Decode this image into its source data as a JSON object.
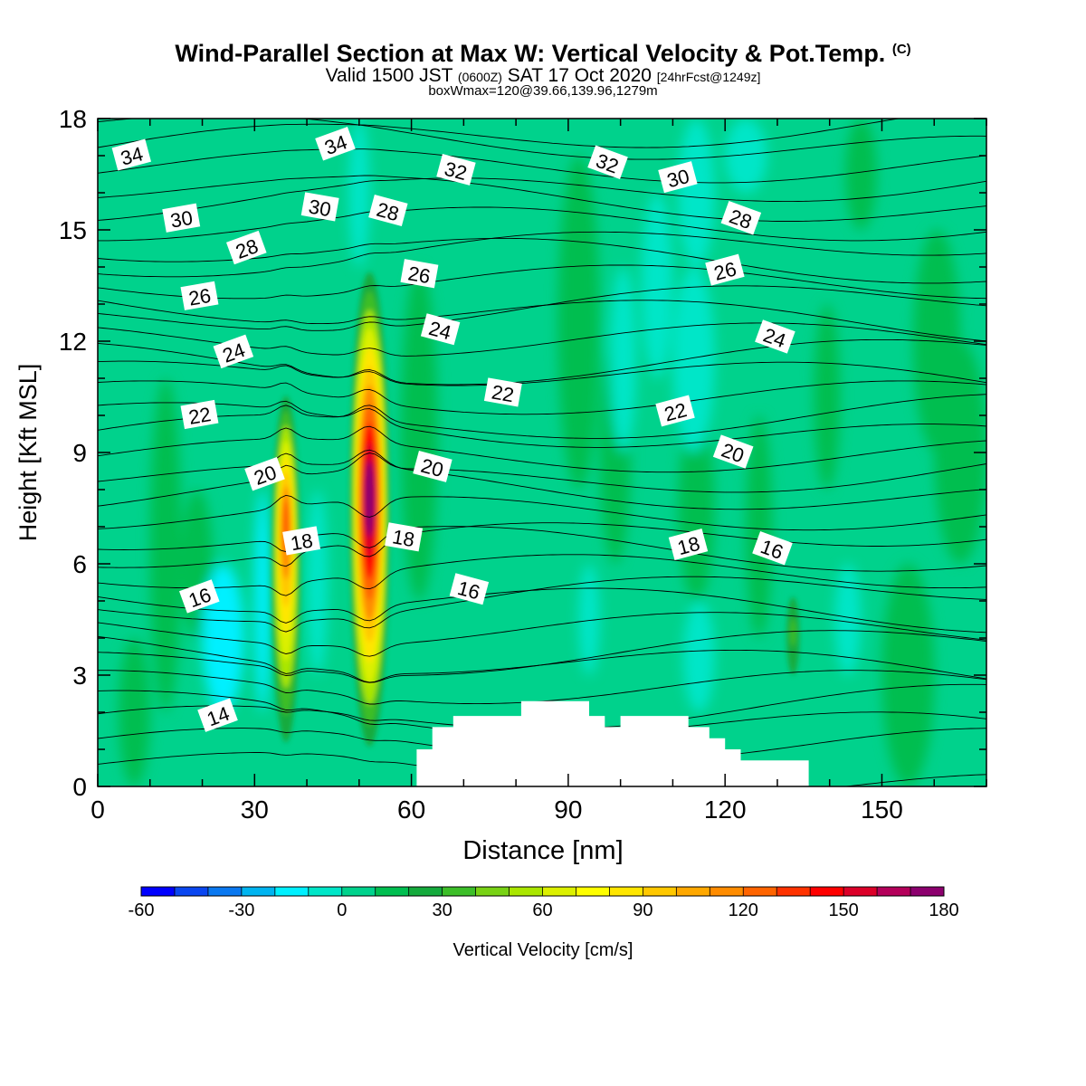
{
  "header": {
    "title": "Wind-Parallel Section at Max W: Vertical Velocity & Pot.Temp.",
    "title_mark": "(C)",
    "valid_prefix": "Valid 1500 JST",
    "valid_utc": "(0600Z)",
    "valid_date": "SAT 17 Oct 2020",
    "forecast": "[24hrFcst@1249z]",
    "box_info": "boxWmax=120@39.66,139.96,1279m"
  },
  "chart_data": {
    "type": "heatmap",
    "xlabel": "Distance [nm]",
    "ylabel": "Height [Kft MSL]",
    "xlim": [
      0,
      170
    ],
    "ylim": [
      0,
      18
    ],
    "x_ticks": [
      0,
      30,
      60,
      90,
      120,
      150
    ],
    "y_ticks": [
      0,
      3,
      6,
      9,
      12,
      15,
      18
    ],
    "colorbar": {
      "label": "Vertical Velocity [cm/s]",
      "min": -60,
      "max": 180,
      "step": 10,
      "tick_labels": [
        "-60",
        "-30",
        "0",
        "30",
        "60",
        "90",
        "120",
        "150",
        "180"
      ],
      "colors": [
        "#0000ff",
        "#0a46f0",
        "#0a78f0",
        "#00b4f0",
        "#00f0ff",
        "#00e6c8",
        "#00d28c",
        "#00be50",
        "#14aa3c",
        "#3cbe28",
        "#78d214",
        "#aae600",
        "#dcf000",
        "#ffff00",
        "#ffe600",
        "#ffc800",
        "#ffa800",
        "#ff8c00",
        "#ff6400",
        "#ff3200",
        "#ff0000",
        "#dc0028",
        "#b4005a",
        "#8c006e",
        "#640096"
      ]
    },
    "vertical_velocity_features": [
      {
        "x": 36,
        "z_bottom": 0.7,
        "z_top": 10.8,
        "peak_z": 7.2,
        "peak_value": 130
      },
      {
        "x": 52,
        "z_bottom": 0.7,
        "z_top": 14.2,
        "peak_z": 7.8,
        "peak_value": 180
      },
      {
        "x": 133,
        "z_bottom": 2.5,
        "z_top": 5.5,
        "peak_z": 4.2,
        "peak_value": 40
      }
    ],
    "theta_contour_labels": [
      {
        "text": "34",
        "x": 6.5,
        "z": 17.0
      },
      {
        "text": "34",
        "x": 45.5,
        "z": 17.3
      },
      {
        "text": "32",
        "x": 68.5,
        "z": 16.6
      },
      {
        "text": "32",
        "x": 97.5,
        "z": 16.8
      },
      {
        "text": "30",
        "x": 16,
        "z": 15.3
      },
      {
        "text": "30",
        "x": 42.5,
        "z": 15.6
      },
      {
        "text": "30",
        "x": 111,
        "z": 16.4
      },
      {
        "text": "28",
        "x": 28.5,
        "z": 14.5
      },
      {
        "text": "28",
        "x": 55.5,
        "z": 15.5
      },
      {
        "text": "28",
        "x": 123,
        "z": 15.3
      },
      {
        "text": "26",
        "x": 19.5,
        "z": 13.2
      },
      {
        "text": "26",
        "x": 61.5,
        "z": 13.8
      },
      {
        "text": "26",
        "x": 120,
        "z": 13.9
      },
      {
        "text": "24",
        "x": 26,
        "z": 11.7
      },
      {
        "text": "24",
        "x": 65.5,
        "z": 12.3
      },
      {
        "text": "24",
        "x": 129.5,
        "z": 12.1
      },
      {
        "text": "22",
        "x": 19.5,
        "z": 10.0
      },
      {
        "text": "22",
        "x": 77.5,
        "z": 10.6
      },
      {
        "text": "22",
        "x": 110.5,
        "z": 10.1
      },
      {
        "text": "20",
        "x": 32,
        "z": 8.4
      },
      {
        "text": "20",
        "x": 64,
        "z": 8.6
      },
      {
        "text": "20",
        "x": 121.5,
        "z": 9.0
      },
      {
        "text": "18",
        "x": 39,
        "z": 6.6
      },
      {
        "text": "18",
        "x": 58.5,
        "z": 6.7
      },
      {
        "text": "18",
        "x": 113,
        "z": 6.5
      },
      {
        "text": "16",
        "x": 19.5,
        "z": 5.1
      },
      {
        "text": "16",
        "x": 71,
        "z": 5.3
      },
      {
        "text": "16",
        "x": 129,
        "z": 6.4
      },
      {
        "text": "14",
        "x": 23,
        "z": 1.9
      }
    ],
    "terrain_profile": [
      [
        61,
        0
      ],
      [
        61,
        1
      ],
      [
        64,
        1
      ],
      [
        64,
        1.6
      ],
      [
        68,
        1.6
      ],
      [
        68,
        1.9
      ],
      [
        81,
        1.9
      ],
      [
        81,
        2.3
      ],
      [
        94,
        2.3
      ],
      [
        94,
        1.9
      ],
      [
        97,
        1.9
      ],
      [
        97,
        1.6
      ],
      [
        100,
        1.6
      ],
      [
        100,
        1.9
      ],
      [
        113,
        1.9
      ],
      [
        113,
        1.6
      ],
      [
        117,
        1.6
      ],
      [
        117,
        1.3
      ],
      [
        120,
        1.3
      ],
      [
        120,
        1.0
      ],
      [
        123,
        1.0
      ],
      [
        123,
        0.7
      ],
      [
        136,
        0.7
      ],
      [
        136,
        0
      ]
    ]
  }
}
